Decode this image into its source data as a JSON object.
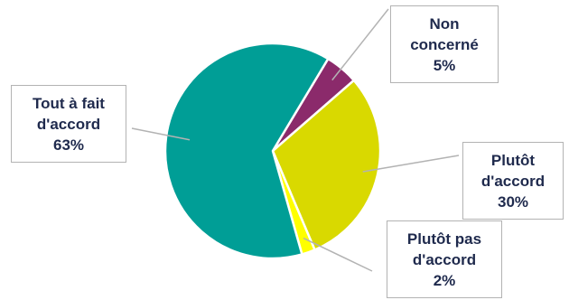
{
  "chart_data": {
    "type": "pie",
    "title": "",
    "slices": [
      {
        "label_lines": [
          "Non",
          "concerné"
        ],
        "value": 5,
        "value_label": "5%",
        "color": "#8b2a6b"
      },
      {
        "label_lines": [
          "Plutôt",
          "d'accord"
        ],
        "value": 30,
        "value_label": "30%",
        "color": "#d9d900"
      },
      {
        "label_lines": [
          "Plutôt pas",
          "d'accord"
        ],
        "value": 2,
        "value_label": "2%",
        "color": "#ffff00"
      },
      {
        "label_lines": [
          "Tout à fait",
          "d'accord"
        ],
        "value": 63,
        "value_label": "63%",
        "color": "#009e96"
      }
    ],
    "start_angle_deg": 31,
    "direction": "clockwise",
    "slice_separator_color": "#ffffff",
    "leader_line_color": "#b3b3b3",
    "label_text_color": "#1f2a4d"
  }
}
